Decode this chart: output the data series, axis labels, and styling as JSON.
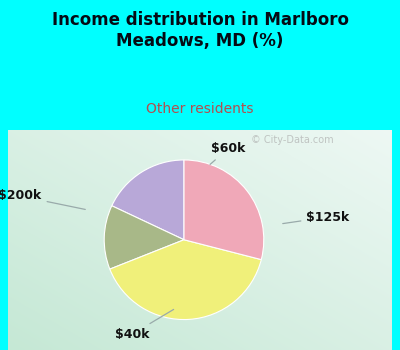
{
  "title": "Income distribution in Marlboro\nMeadows, MD (%)",
  "subtitle": "Other residents",
  "title_color": "#050a14",
  "subtitle_color": "#b05050",
  "slices": [
    "$60k",
    "$125k",
    "$40k",
    "$200k"
  ],
  "values": [
    18,
    13,
    40,
    29
  ],
  "colors": [
    "#b8a8d8",
    "#a8b888",
    "#f0f07a",
    "#f0a8b8"
  ],
  "startangle": 90,
  "bg_cyan": "#00ffff",
  "watermark": "City-Data.com",
  "label_fontsize": 9,
  "title_fontsize": 12,
  "subtitle_fontsize": 10
}
